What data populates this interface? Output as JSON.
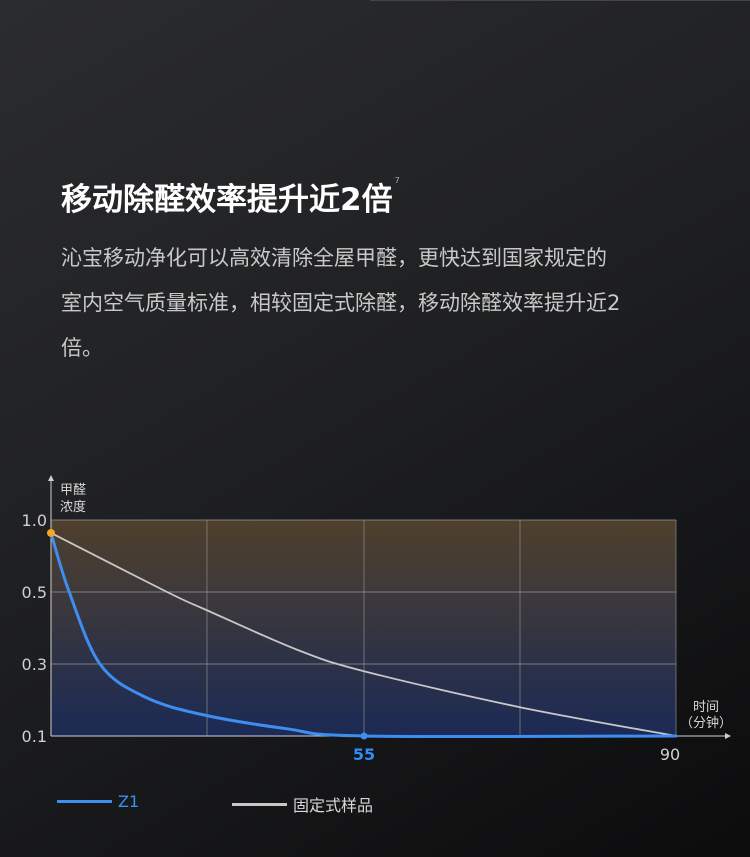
{
  "header": {
    "title": "移动除醛效率提升近2倍",
    "footnote": "7",
    "description": "沁宝移动净化可以高效清除全屋甲醛，更快达到国家规定的室内空气质量标准，相较固定式除醛，移动除醛效率提升近2倍。"
  },
  "chart_data": {
    "type": "line",
    "title": "",
    "ylabel": "甲醛\n浓度",
    "ylabel_lines": [
      "甲醛",
      "浓度"
    ],
    "xlabel_lines": [
      "时间",
      "（分钟）"
    ],
    "y_ticks": [
      0.1,
      0.3,
      0.5,
      1.0
    ],
    "y_tick_labels": [
      "0.1",
      "0.3",
      "0.5",
      "1.0"
    ],
    "y_scale": "non-linear (evenly spaced ticks)",
    "x_ticks": [
      55,
      90
    ],
    "x_tick_labels": [
      "55",
      "90"
    ],
    "x_tick_colors": [
      "#2f8df5",
      "#d0d0d0"
    ],
    "xlim": [
      0,
      90
    ],
    "ylim": [
      0.1,
      1.0
    ],
    "grid": true,
    "legend_placement": "bottom",
    "series": [
      {
        "name": "Z1",
        "color": "#3d8ef0",
        "x": [
          0,
          3.2,
          8.6,
          16.3,
          26.4,
          41.5,
          55,
          90
        ],
        "y": [
          0.91,
          0.5,
          0.3,
          0.21,
          0.16,
          0.12,
          0.1,
          0.1
        ]
      },
      {
        "name": "固定式样品",
        "color": "#c8c8c8",
        "x": [
          0,
          20.4,
          27.3,
          43.2,
          55,
          72.5,
          90
        ],
        "y": [
          0.91,
          0.5,
          0.45,
          0.34,
          0.28,
          0.18,
          0.1
        ]
      }
    ],
    "markers": [
      {
        "x": 0,
        "y": 0.91,
        "color": "#f5a623"
      },
      {
        "x": 55,
        "y": 0.1,
        "color": "#3d8ef0"
      }
    ],
    "plot_fill_colors": [
      "#4f402c",
      "#1b2a55"
    ]
  }
}
